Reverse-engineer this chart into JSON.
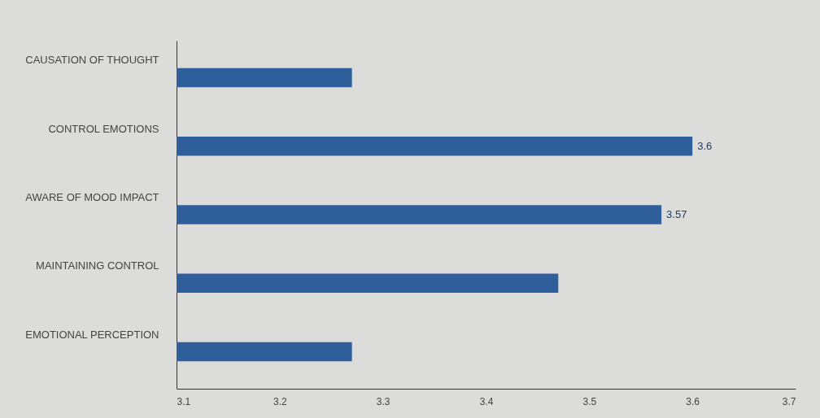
{
  "chart_data": {
    "type": "bar",
    "orientation": "horizontal",
    "categories": [
      "CAUSATION OF THOUGHT",
      "CONTROL EMOTIONS",
      "AWARE OF MOOD IMPACT",
      "MAINTAINING CONTROL",
      "EMOTIONAL PERCEPTION"
    ],
    "values": [
      3.27,
      3.6,
      3.57,
      3.47,
      3.27
    ],
    "value_labels": [
      null,
      "3.6",
      "3.57",
      null,
      null
    ],
    "color": "#2e5f9a",
    "xlim": [
      3.1,
      3.7
    ],
    "xticks": [
      3.1,
      3.2,
      3.3,
      3.4,
      3.5,
      3.6,
      3.7
    ]
  }
}
